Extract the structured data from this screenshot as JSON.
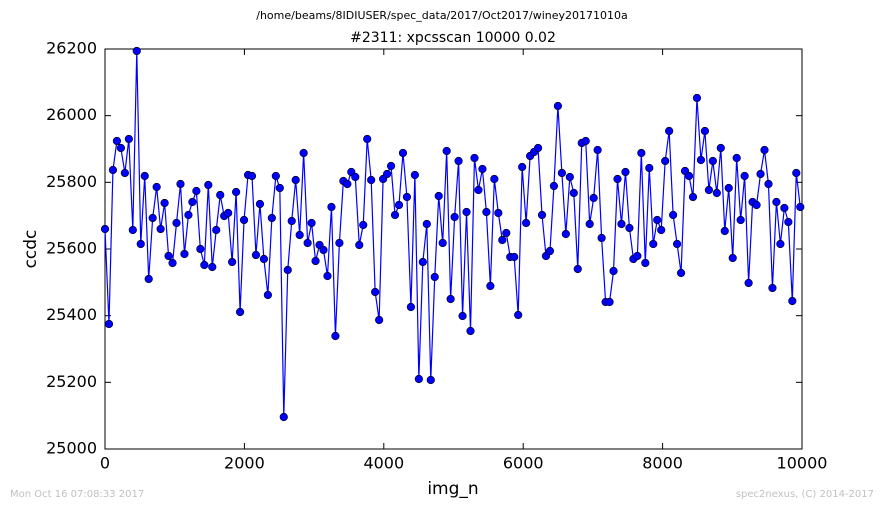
{
  "chart_data": {
    "type": "line",
    "subtitle": "/home/beams/8IDIUSER/spec_data/2017/Oct2017/winey20171010a",
    "title": "#2311: xpcsscan 10000 0.02",
    "xlabel": "img_n",
    "ylabel": "ccdc",
    "footer_left": "Mon Oct 16 07:08:33 2017",
    "footer_right": "spec2nexus, (C) 2014-2017",
    "xlim": [
      0,
      10000
    ],
    "xticks": [
      0,
      2000,
      4000,
      6000,
      8000,
      10000
    ],
    "ylim": [
      25000,
      26200
    ],
    "yticks": [
      25000,
      25200,
      25400,
      25600,
      25800,
      26000,
      26200
    ],
    "x": [
      0,
      57,
      114,
      171,
      228,
      285,
      342,
      399,
      456,
      513,
      570,
      627,
      684,
      741,
      798,
      855,
      912,
      969,
      1026,
      1083,
      1140,
      1197,
      1254,
      1311,
      1368,
      1425,
      1482,
      1539,
      1596,
      1653,
      1710,
      1767,
      1824,
      1881,
      1938,
      1995,
      2052,
      2109,
      2166,
      2223,
      2280,
      2337,
      2394,
      2451,
      2508,
      2565,
      2622,
      2679,
      2736,
      2793,
      2850,
      2907,
      2964,
      3021,
      3078,
      3135,
      3192,
      3249,
      3306,
      3363,
      3420,
      3477,
      3534,
      3591,
      3648,
      3705,
      3762,
      3819,
      3876,
      3933,
      3990,
      4047,
      4104,
      4161,
      4218,
      4275,
      4332,
      4389,
      4446,
      4503,
      4560,
      4617,
      4674,
      4731,
      4788,
      4845,
      4902,
      4959,
      5016,
      5073,
      5130,
      5187,
      5244,
      5301,
      5358,
      5415,
      5472,
      5529,
      5586,
      5643,
      5700,
      5757,
      5814,
      5871,
      5928,
      5985,
      6042,
      6099,
      6156,
      6213,
      6270,
      6327,
      6384,
      6441,
      6498,
      6555,
      6612,
      6669,
      6726,
      6783,
      6840,
      6897,
      6954,
      7011,
      7068,
      7125,
      7182,
      7239,
      7296,
      7353,
      7410,
      7467,
      7524,
      7581,
      7638,
      7695,
      7752,
      7809,
      7866,
      7923,
      7980,
      8037,
      8094,
      8151,
      8208,
      8265,
      8322,
      8379,
      8436,
      8493,
      8550,
      8607,
      8664,
      8721,
      8778,
      8835,
      8892,
      8949,
      9006,
      9063,
      9120,
      9177,
      9234,
      9291,
      9348,
      9405,
      9462,
      9519,
      9576,
      9633,
      9690,
      9747,
      9804,
      9861,
      9918,
      9975
    ],
    "series": [
      {
        "color": "#0000ff",
        "values": [
          25660,
          25375,
          25837,
          25924,
          25903,
          25828,
          25930,
          25657,
          26194,
          25615,
          25819,
          25510,
          25693,
          25786,
          25660,
          25738,
          25579,
          25558,
          25678,
          25795,
          25585,
          25702,
          25741,
          25774,
          25600,
          25552,
          25792,
          25546,
          25657,
          25762,
          25699,
          25708,
          25561,
          25771,
          25411,
          25687,
          25822,
          25819,
          25582,
          25735,
          25570,
          25462,
          25693,
          25819,
          25783,
          25096,
          25537,
          25684,
          25807,
          25642,
          25888,
          25618,
          25678,
          25564,
          25612,
          25597,
          25519,
          25726,
          25339,
          25618,
          25804,
          25795,
          25831,
          25816,
          25612,
          25672,
          25930,
          25807,
          25471,
          25387,
          25810,
          25825,
          25849,
          25702,
          25732,
          25888,
          25756,
          25426,
          25822,
          25210,
          25561,
          25675,
          25207,
          25516,
          25759,
          25618,
          25894,
          25450,
          25696,
          25864,
          25399,
          25711,
          25354,
          25873,
          25777,
          25840,
          25711,
          25489,
          25810,
          25708,
          25627,
          25648,
          25576,
          25576,
          25402,
          25846,
          25678,
          25879,
          25891,
          25903,
          25702,
          25579,
          25594,
          25789,
          26029,
          25828,
          25645,
          25816,
          25768,
          25540,
          25918,
          25924,
          25675,
          25753,
          25897,
          25633,
          25441,
          25441,
          25534,
          25810,
          25675,
          25831,
          25663,
          25570,
          25579,
          25888,
          25558,
          25843,
          25615,
          25687,
          25657,
          25864,
          25954,
          25702,
          25615,
          25528,
          25834,
          25819,
          25756,
          26053,
          25867,
          25954,
          25777,
          25864,
          25768,
          25903,
          25654,
          25783,
          25573,
          25873,
          25687,
          25819,
          25498,
          25741,
          25732,
          25825,
          25897,
          25795,
          25483,
          25741,
          25615,
          25723,
          25681,
          25444,
          25828,
          25726
        ]
      }
    ]
  }
}
